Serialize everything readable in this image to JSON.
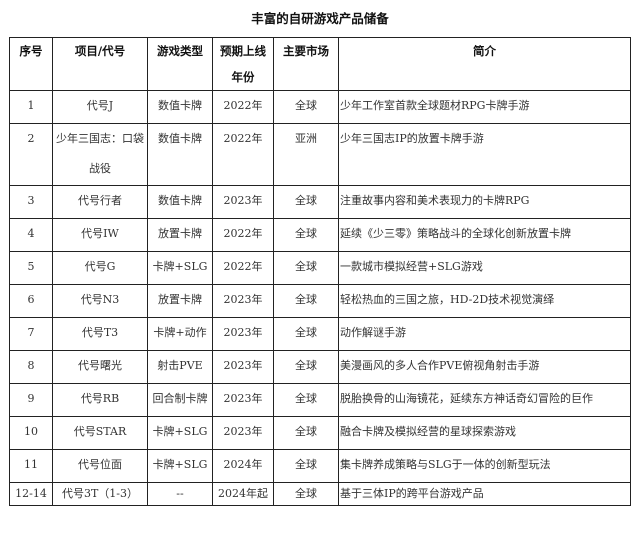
{
  "title": "丰富的自研游戏产品储备",
  "headers": [
    "序号",
    "项目/代号",
    "游戏类型",
    "预期上线年份",
    "主要市场",
    "简介"
  ],
  "rows": [
    {
      "no": "1",
      "name": "代号J",
      "type": "数值卡牌",
      "year": "2022年",
      "market": "全球",
      "desc": "少年工作室首款全球题材RPG卡牌手游"
    },
    {
      "no": "2",
      "name": "少年三国志：口袋战役",
      "type": "数值卡牌",
      "year": "2022年",
      "market": "亚洲",
      "desc": "少年三国志IP的放置卡牌手游"
    },
    {
      "no": "3",
      "name": "代号行者",
      "type": "数值卡牌",
      "year": "2023年",
      "market": "全球",
      "desc": "注重故事内容和美术表现力的卡牌RPG"
    },
    {
      "no": "4",
      "name": "代号IW",
      "type": "放置卡牌",
      "year": "2022年",
      "market": "全球",
      "desc": "延续《少三零》策略战斗的全球化创新放置卡牌"
    },
    {
      "no": "5",
      "name": "代号G",
      "type": "卡牌+SLG",
      "year": "2022年",
      "market": "全球",
      "desc": "一款城市模拟经营+SLG游戏"
    },
    {
      "no": "6",
      "name": "代号N3",
      "type": "放置卡牌",
      "year": "2023年",
      "market": "全球",
      "desc": "轻松热血的三国之旅，HD-2D技术视觉演绎"
    },
    {
      "no": "7",
      "name": "代号T3",
      "type": "卡牌+动作",
      "year": "2023年",
      "market": "全球",
      "desc": "动作解谜手游"
    },
    {
      "no": "8",
      "name": "代号曙光",
      "type": "射击PVE",
      "year": "2023年",
      "market": "全球",
      "desc": "美漫画风的多人合作PVE俯视角射击手游"
    },
    {
      "no": "9",
      "name": "代号RB",
      "type": "回合制卡牌",
      "year": "2023年",
      "market": "全球",
      "desc": "脱胎换骨的山海镜花，延续东方神话奇幻冒险的巨作"
    },
    {
      "no": "10",
      "name": "代号STAR",
      "type": "卡牌+SLG",
      "year": "2023年",
      "market": "全球",
      "desc": "融合卡牌及模拟经营的星球探索游戏"
    },
    {
      "no": "11",
      "name": "代号位面",
      "type": "卡牌+SLG",
      "year": "2024年",
      "market": "全球",
      "desc": "集卡牌养成策略与SLG于一体的创新型玩法"
    },
    {
      "no": "12-14",
      "name": "代号3T（1-3）",
      "type": "--",
      "year": "2024年起",
      "market": "全球",
      "desc": "基于三体IP的跨平台游戏产品"
    }
  ]
}
